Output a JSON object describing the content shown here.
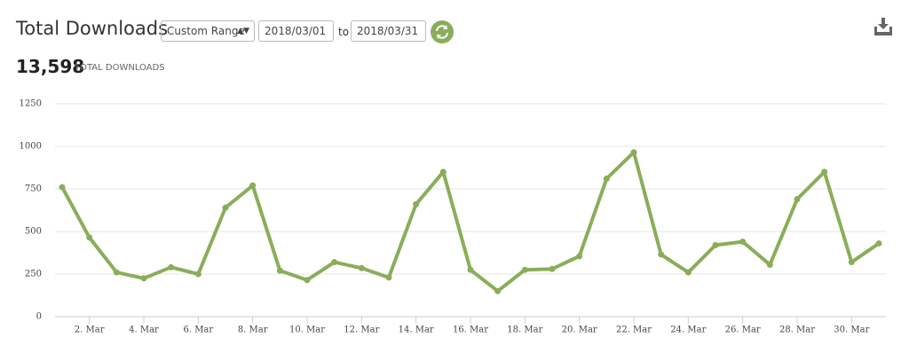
{
  "header": {
    "title": "Total Downloads",
    "range_option": "Custom Range",
    "start_date": "2018/03/01",
    "to": "to",
    "end_date": "2018/03/31"
  },
  "summary": {
    "total": "13,598",
    "label": "TOTAL DOWNLOADS"
  },
  "chart_data": {
    "type": "line",
    "color": "#8aad5a",
    "grid": true,
    "categories": [
      null,
      "2. Mar",
      null,
      "4. Mar",
      null,
      "6. Mar",
      null,
      "8. Mar",
      null,
      "10. Mar",
      null,
      "12. Mar",
      null,
      "14. Mar",
      null,
      "16. Mar",
      null,
      "18. Mar",
      null,
      "20. Mar",
      null,
      "22. Mar",
      null,
      "24. Mar",
      null,
      "26. Mar",
      null,
      "28. Mar",
      null,
      "30. Mar",
      null
    ],
    "values": [
      760,
      465,
      260,
      225,
      290,
      250,
      640,
      770,
      270,
      215,
      320,
      285,
      230,
      660,
      850,
      275,
      150,
      275,
      280,
      355,
      810,
      965,
      365,
      260,
      420,
      440,
      305,
      690,
      850,
      320,
      430
    ],
    "ylim": [
      0,
      1250
    ],
    "yticks": [
      0,
      250,
      500,
      750,
      1000,
      1250
    ]
  }
}
